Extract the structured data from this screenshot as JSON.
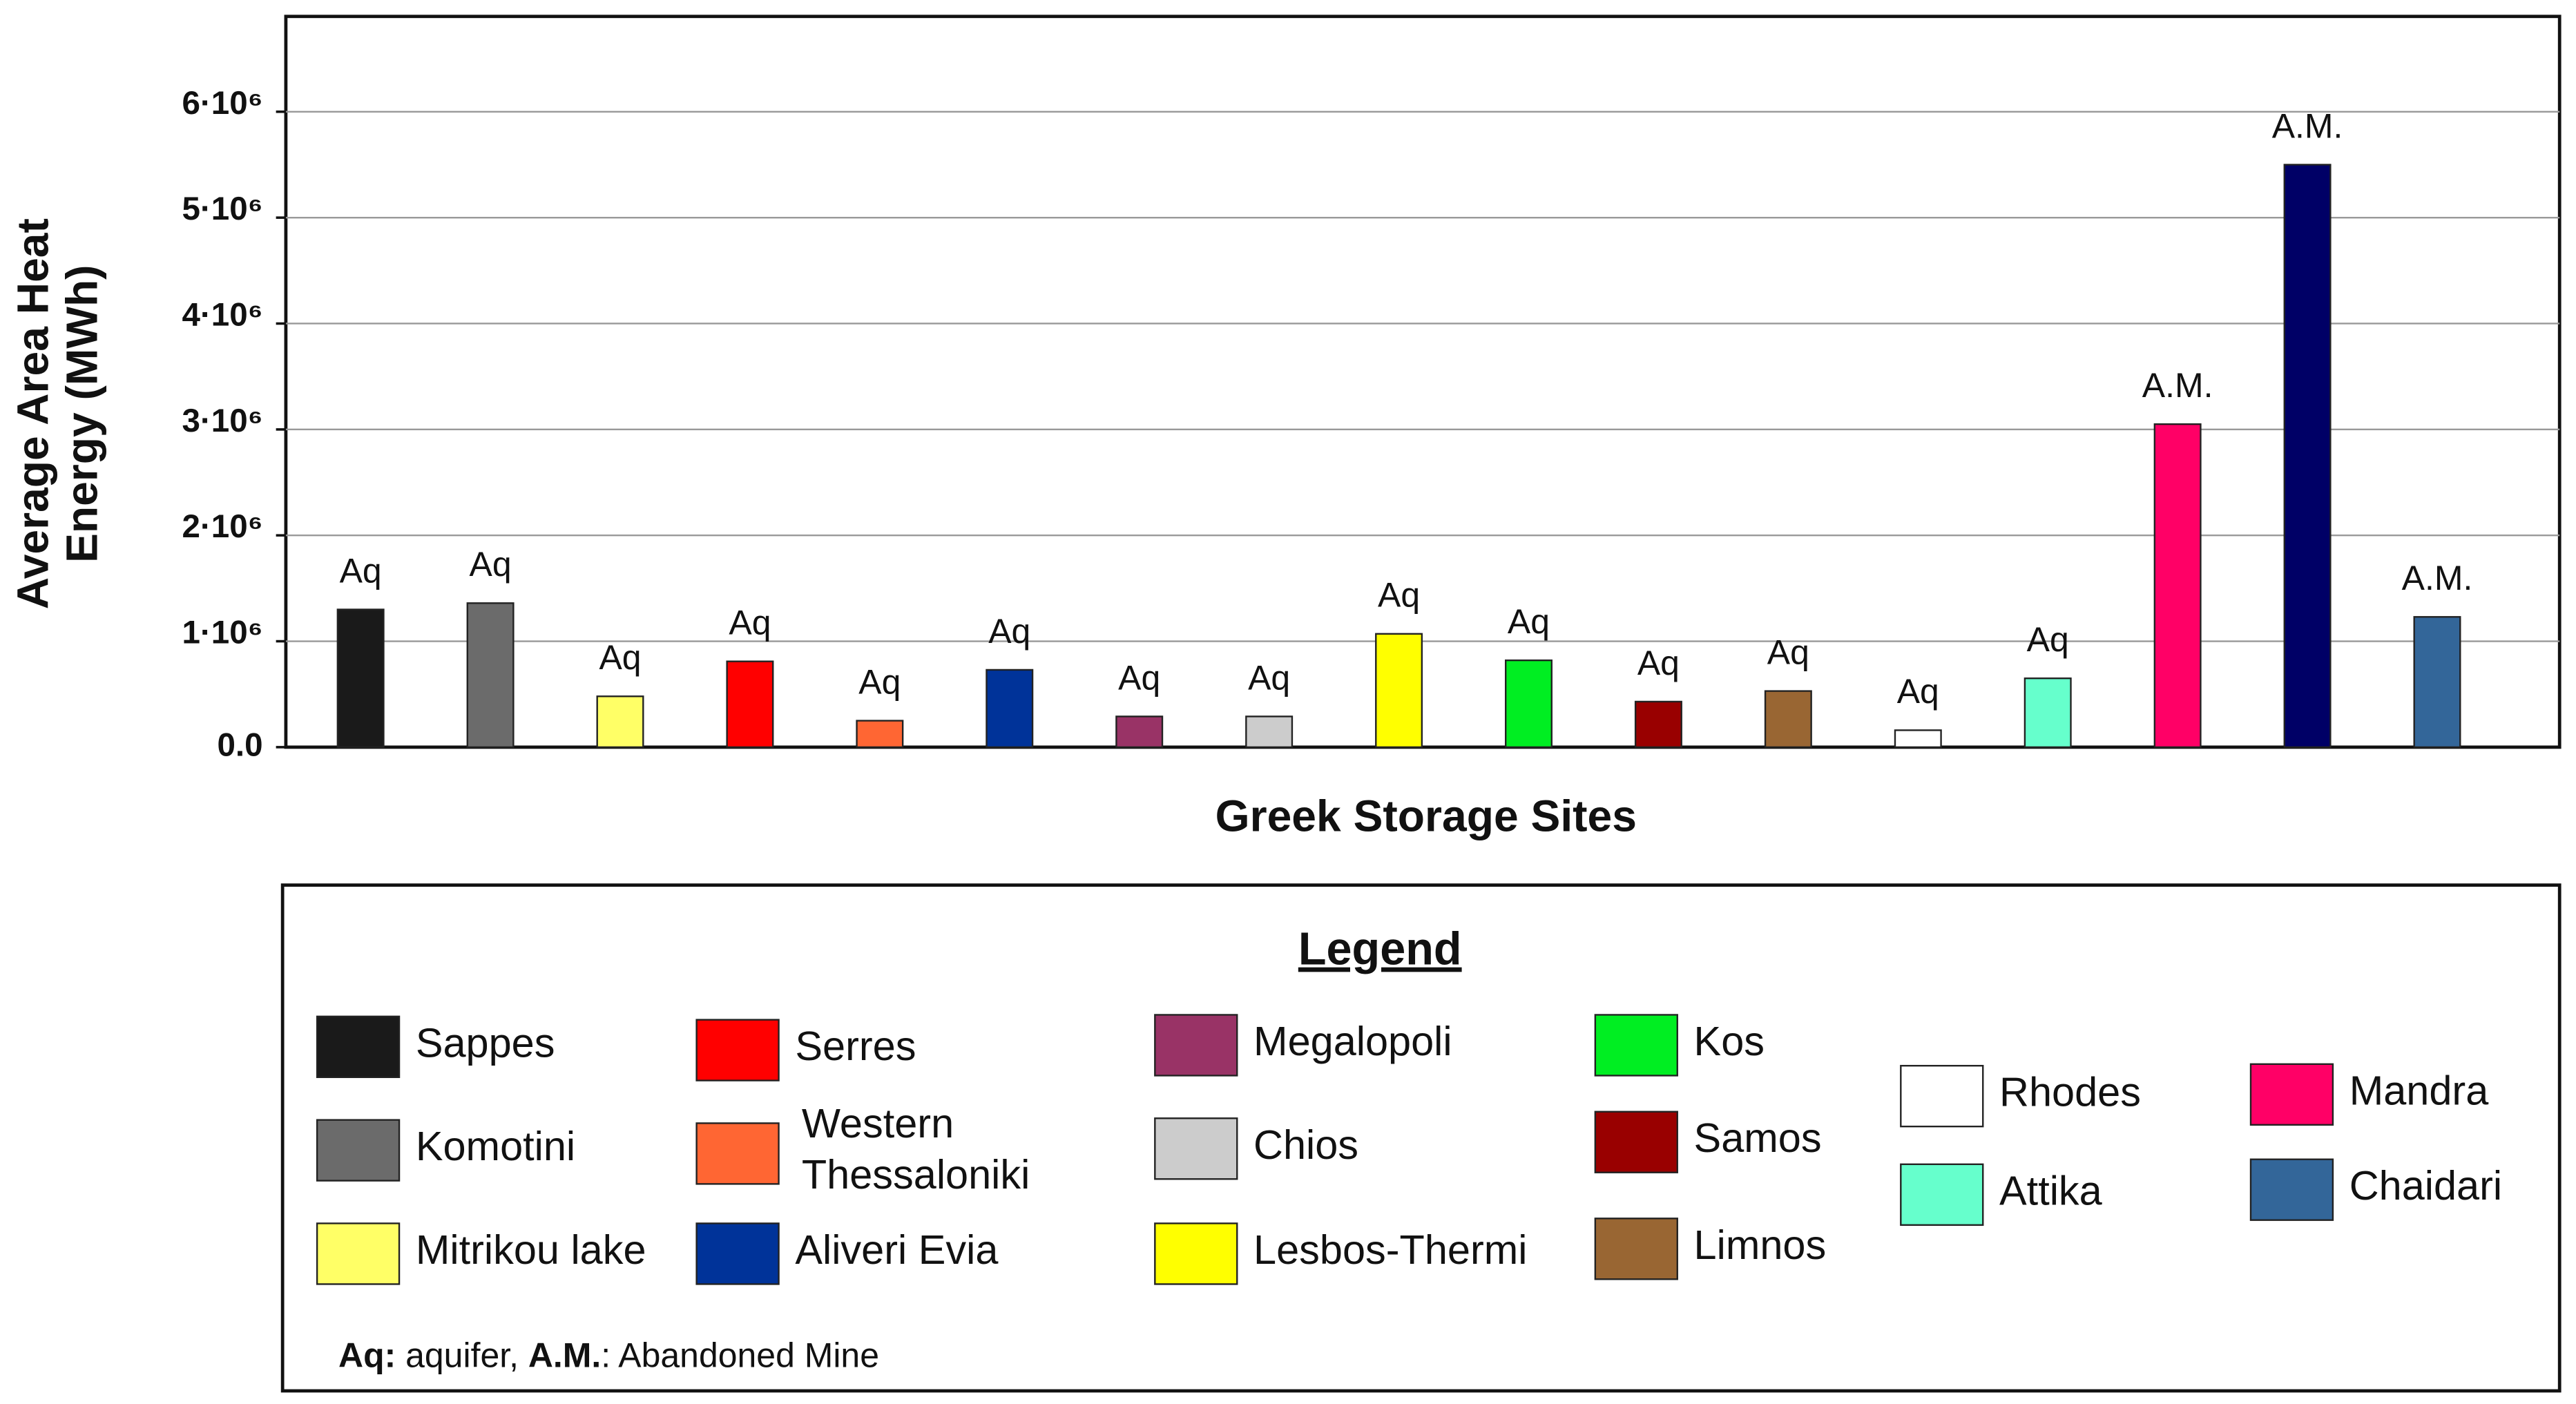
{
  "chart_data": {
    "type": "bar",
    "xlabel": "Greek Storage Sites",
    "ylabel": [
      "Average Area Heat",
      "Energy (MWh)"
    ],
    "categories": [
      "Sappes",
      "Komotini",
      "Mitrikou lake",
      "Serres",
      "Western Thessaloniki",
      "Aliveri Evia",
      "Megalopoli",
      "Chios",
      "Lesbos-Thermi",
      "Kos",
      "Samos",
      "Limnos",
      "Rhodes",
      "Attika",
      "Mandra",
      null,
      "Chaidari"
    ],
    "values": [
      1300000,
      1360000,
      480000,
      810000,
      250000,
      730000,
      290000,
      290000,
      1070000,
      820000,
      430000,
      530000,
      160000,
      650000,
      3050000,
      5500000,
      1230000
    ],
    "bar_labels": [
      "Aq",
      "Aq",
      "Aq",
      "Aq",
      "Aq",
      "Aq",
      "Aq",
      "Aq",
      "Aq",
      "Aq",
      "Aq",
      "Aq",
      "Aq",
      "Aq",
      "A.M.",
      "A.M.",
      "A.M."
    ],
    "colors": [
      "#1a1a1a",
      "#6b6b6b",
      "#ffff66",
      "#ff0000",
      "#ff6633",
      "#003399",
      "#993366",
      "#cccccc",
      "#ffff00",
      "#00ee22",
      "#990000",
      "#996633",
      "#ffffff",
      "#66ffcc",
      "#ff0066",
      "#000066",
      "#336699"
    ],
    "ylim": [
      0,
      6900000
    ],
    "yticks": [
      {
        "value": 0,
        "label": "0.0"
      },
      {
        "value": 1000000,
        "label": "1·10⁶"
      },
      {
        "value": 2000000,
        "label": "2·10⁶"
      },
      {
        "value": 3000000,
        "label": "3·10⁶"
      },
      {
        "value": 4000000,
        "label": "4·10⁶"
      },
      {
        "value": 5000000,
        "label": "5·10⁶"
      },
      {
        "value": 6000000,
        "label": "6·10⁶"
      }
    ],
    "grid": true,
    "legend_title": "Legend",
    "note": [
      "Aq:",
      " aquifer, ",
      "A.M.",
      ": Abandoned Mine"
    ]
  }
}
